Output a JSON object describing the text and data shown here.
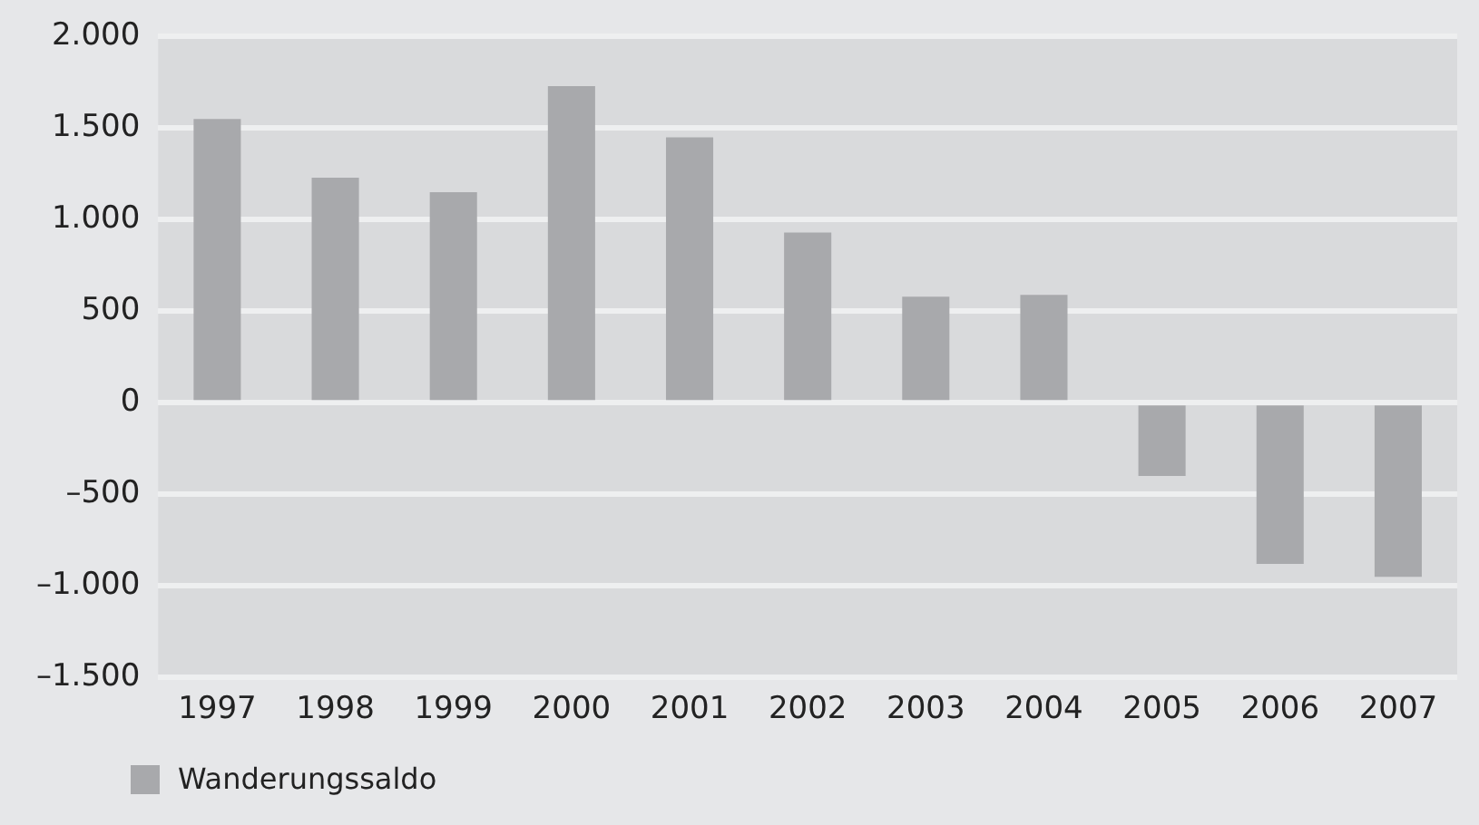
{
  "chart_data": {
    "type": "bar",
    "categories": [
      "1997",
      "1998",
      "1999",
      "2000",
      "2001",
      "2002",
      "2003",
      "2004",
      "2005",
      "2006",
      "2007"
    ],
    "series": [
      {
        "name": "Wanderungssaldo",
        "color": "#a8a9ac",
        "values": [
          1550,
          1230,
          1150,
          1730,
          1450,
          930,
          580,
          590,
          -400,
          -880,
          -950
        ]
      }
    ],
    "ylim": [
      -1500,
      2000
    ],
    "yticks": [
      {
        "value": -1500,
        "label": "–1.500"
      },
      {
        "value": -1000,
        "label": "–1.000"
      },
      {
        "value": -500,
        "label": "–500"
      },
      {
        "value": 0,
        "label": "0"
      },
      {
        "value": 500,
        "label": "500"
      },
      {
        "value": 1000,
        "label": "1.000"
      },
      {
        "value": 1500,
        "label": "1.500"
      },
      {
        "value": 2000,
        "label": "2.000"
      }
    ],
    "grid": "y",
    "legend": "bottom left"
  }
}
